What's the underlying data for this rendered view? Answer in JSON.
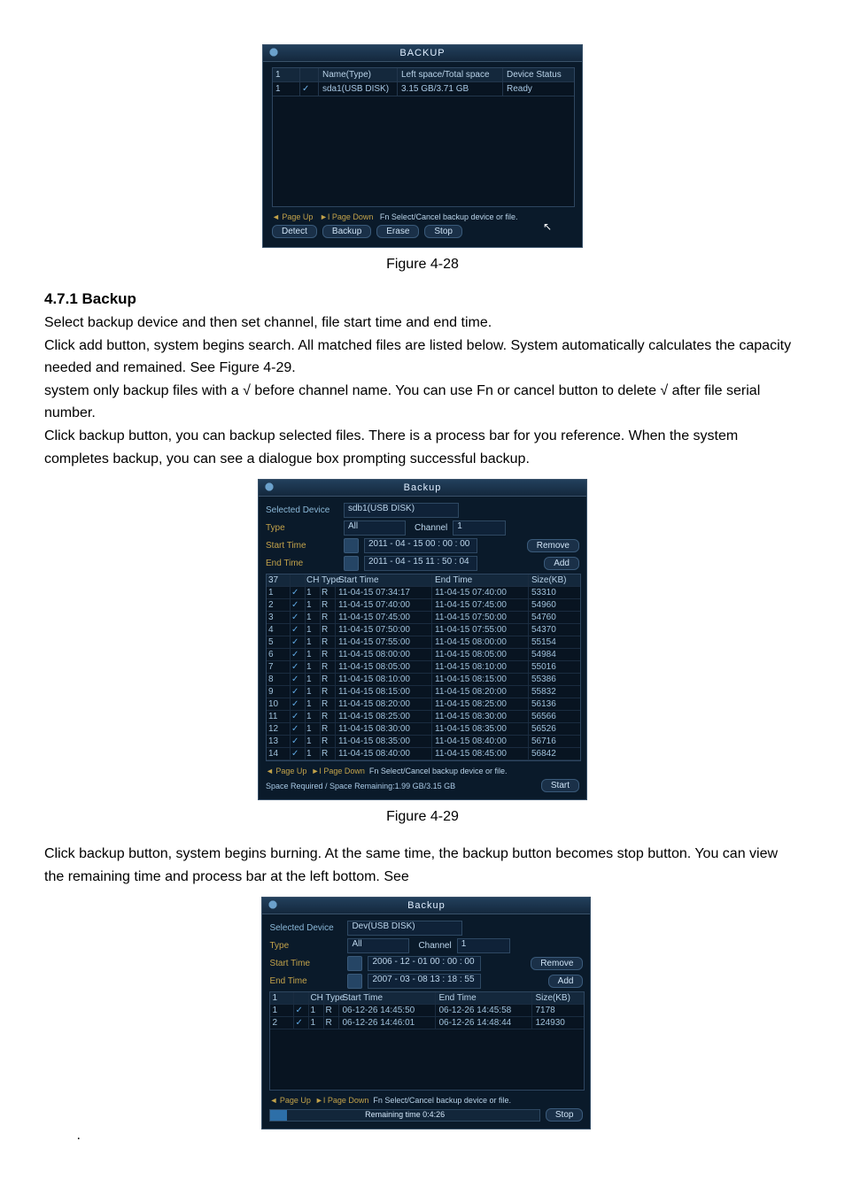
{
  "fig28": {
    "title": "BACKUP",
    "caption": "Figure 4-28",
    "head": {
      "idx": "1",
      "name": "Name(Type)",
      "space": "Left space/Total space",
      "status": "Device Status"
    },
    "row": {
      "idx": "1",
      "chk": "✓",
      "name": "sda1(USB DISK)",
      "space": "3.15 GB/3.71 GB",
      "status": "Ready"
    },
    "hint": {
      "p1": "◄ Page Up",
      "p2": "►I Page Down",
      "p3": "Fn Select/Cancel backup device or file."
    },
    "buttons": {
      "detect": "Detect",
      "backup": "Backup",
      "erase": "Erase",
      "stop": "Stop"
    }
  },
  "section": {
    "heading": "4.7.1  Backup",
    "p1": "Select backup device and then set channel, file start time and end time.",
    "p2": "Click add button, system begins search. All matched files are listed below. System automatically calculates the capacity needed and remained. See Figure 4-29.",
    "p3": "system only backup files with a  √  before channel name. You can use Fn or cancel button to delete √ after file serial number.",
    "p4": "Click backup button, you can backup selected files. There is a process bar for you reference. When the system completes backup, you can see a dialogue box prompting successful backup."
  },
  "fig29": {
    "title": "Backup",
    "caption": "Figure 4-29",
    "device_label": "Selected Device",
    "device_value": "sdb1(USB DISK)",
    "type_label": "Type",
    "type_value": "All",
    "channel_label": "Channel",
    "channel_value": "1",
    "start_label": "Start Time",
    "start_value": "2011 - 04 - 15   00 : 00 : 00",
    "end_label": "End Time",
    "end_value": "2011 - 04 - 15   11 : 50 : 04",
    "remove": "Remove",
    "add": "Add",
    "head": {
      "total": "37",
      "ch": "CH",
      "tp": "Type",
      "st": "Start Time",
      "et": "End Time",
      "sz": "Size(KB)"
    },
    "rows": [
      {
        "i": "1",
        "ch": "1",
        "tp": "R",
        "st": "11-04-15 07:34:17",
        "et": "11-04-15 07:40:00",
        "sz": "53310"
      },
      {
        "i": "2",
        "ch": "1",
        "tp": "R",
        "st": "11-04-15 07:40:00",
        "et": "11-04-15 07:45:00",
        "sz": "54960"
      },
      {
        "i": "3",
        "ch": "1",
        "tp": "R",
        "st": "11-04-15 07:45:00",
        "et": "11-04-15 07:50:00",
        "sz": "54760"
      },
      {
        "i": "4",
        "ch": "1",
        "tp": "R",
        "st": "11-04-15 07:50:00",
        "et": "11-04-15 07:55:00",
        "sz": "54370"
      },
      {
        "i": "5",
        "ch": "1",
        "tp": "R",
        "st": "11-04-15 07:55:00",
        "et": "11-04-15 08:00:00",
        "sz": "55154"
      },
      {
        "i": "6",
        "ch": "1",
        "tp": "R",
        "st": "11-04-15 08:00:00",
        "et": "11-04-15 08:05:00",
        "sz": "54984"
      },
      {
        "i": "7",
        "ch": "1",
        "tp": "R",
        "st": "11-04-15 08:05:00",
        "et": "11-04-15 08:10:00",
        "sz": "55016"
      },
      {
        "i": "8",
        "ch": "1",
        "tp": "R",
        "st": "11-04-15 08:10:00",
        "et": "11-04-15 08:15:00",
        "sz": "55386"
      },
      {
        "i": "9",
        "ch": "1",
        "tp": "R",
        "st": "11-04-15 08:15:00",
        "et": "11-04-15 08:20:00",
        "sz": "55832"
      },
      {
        "i": "10",
        "ch": "1",
        "tp": "R",
        "st": "11-04-15 08:20:00",
        "et": "11-04-15 08:25:00",
        "sz": "56136"
      },
      {
        "i": "11",
        "ch": "1",
        "tp": "R",
        "st": "11-04-15 08:25:00",
        "et": "11-04-15 08:30:00",
        "sz": "56566"
      },
      {
        "i": "12",
        "ch": "1",
        "tp": "R",
        "st": "11-04-15 08:30:00",
        "et": "11-04-15 08:35:00",
        "sz": "56526"
      },
      {
        "i": "13",
        "ch": "1",
        "tp": "R",
        "st": "11-04-15 08:35:00",
        "et": "11-04-15 08:40:00",
        "sz": "56716"
      },
      {
        "i": "14",
        "ch": "1",
        "tp": "R",
        "st": "11-04-15 08:40:00",
        "et": "11-04-15 08:45:00",
        "sz": "56842"
      }
    ],
    "hint": {
      "p1": "◄ Page Up",
      "p2": "►I Page Down",
      "p3": "Fn Select/Cancel backup device or file."
    },
    "space": "Space Required / Space Remaining:1.99 GB/3.15 GB",
    "start_btn": "Start"
  },
  "after29": {
    "p1": "Click backup button, system begins burning. At the same time, the backup button becomes stop button. You can view the remaining time and process bar at the left bottom. See"
  },
  "fig30": {
    "title": "Backup",
    "device_label": "Selected Device",
    "device_value": "Dev(USB DISK)",
    "type_label": "Type",
    "type_value": "All",
    "channel_label": "Channel",
    "channel_value": "1",
    "start_label": "Start Time",
    "start_value": "2006 - 12 - 01   00 : 00 : 00",
    "end_label": "End Time",
    "end_value": "2007 - 03 - 08   13 : 18 : 55",
    "remove": "Remove",
    "add": "Add",
    "head": {
      "total": "1",
      "ch": "CH",
      "tp": "Type",
      "st": "Start Time",
      "et": "End Time",
      "sz": "Size(KB)"
    },
    "rows": [
      {
        "i": "1",
        "ch": "1",
        "tp": "R",
        "st": "06-12-26 14:45:50",
        "et": "06-12-26 14:45:58",
        "sz": "7178"
      },
      {
        "i": "2",
        "ch": "1",
        "tp": "R",
        "st": "06-12-26 14:46:01",
        "et": "06-12-26 14:48:44",
        "sz": "124930"
      }
    ],
    "hint": {
      "p1": "◄ Page Up",
      "p2": "►I Page Down",
      "p3": "Fn Select/Cancel backup device or file."
    },
    "progress_label": "Remaining time 0:4:26",
    "progress_pct": 6,
    "stop_btn": "Stop"
  }
}
